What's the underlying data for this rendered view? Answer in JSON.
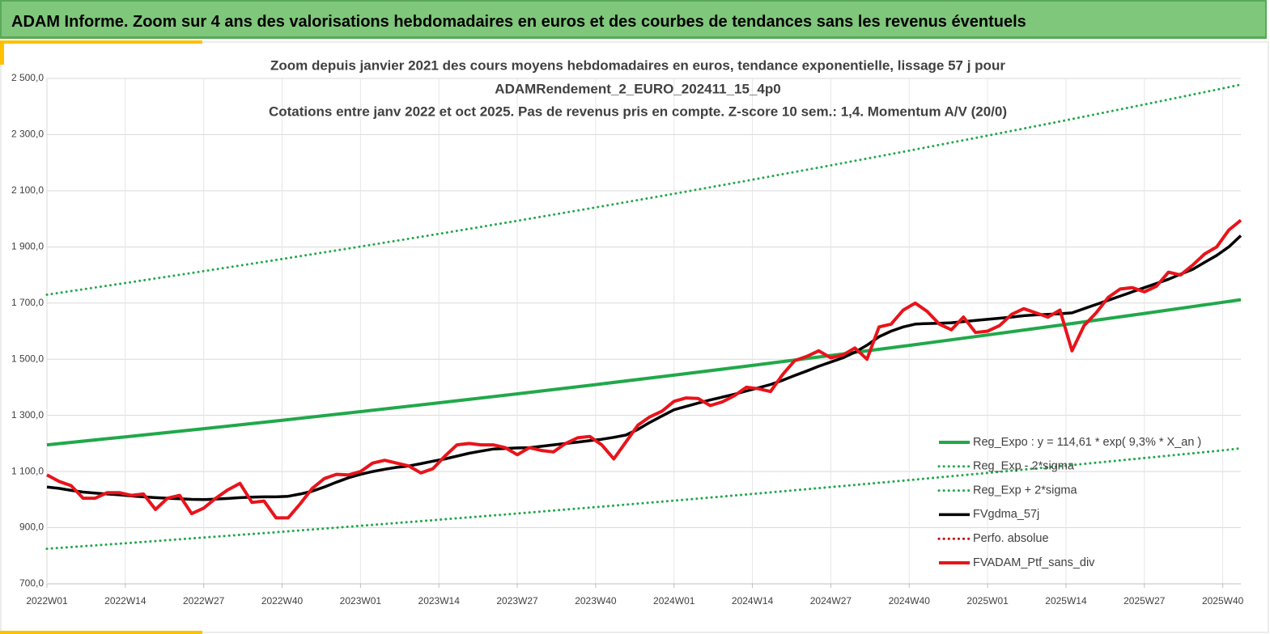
{
  "header": {
    "title": "ADAM Informe. Zoom sur 4 ans des valorisations hebdomadaires en euros et des courbes de tendances sans les revenus éventuels"
  },
  "chart_data": {
    "type": "line",
    "title": [
      "Zoom depuis janvier 2021 des cours moyens hebdomadaires  en euros, tendance exponentielle, lissage 57 j pour",
      "ADAMRendement_2_EURO_202411_15_4p0",
      "Cotations  entre janv 2022 et oct 2025. Pas de revenus pris en compte. Z-score 10 sem.: 1,4. Momentum A/V (20/0)"
    ],
    "xlim": [
      0,
      198
    ],
    "xticks": [
      {
        "value": 0,
        "label": "2022W01"
      },
      {
        "value": 13,
        "label": "2022W14"
      },
      {
        "value": 26,
        "label": "2022W27"
      },
      {
        "value": 39,
        "label": "2022W40"
      },
      {
        "value": 52,
        "label": "2023W01"
      },
      {
        "value": 65,
        "label": "2023W14"
      },
      {
        "value": 78,
        "label": "2023W27"
      },
      {
        "value": 91,
        "label": "2023W40"
      },
      {
        "value": 104,
        "label": "2024W01"
      },
      {
        "value": 117,
        "label": "2024W14"
      },
      {
        "value": 130,
        "label": "2024W27"
      },
      {
        "value": 143,
        "label": "2024W40"
      },
      {
        "value": 156,
        "label": "2025W01"
      },
      {
        "value": 169,
        "label": "2025W14"
      },
      {
        "value": 182,
        "label": "2025W27"
      },
      {
        "value": 195,
        "label": "2025W40"
      }
    ],
    "ylim": [
      700,
      2500
    ],
    "yticks": [
      {
        "value": 700,
        "label": "700,0"
      },
      {
        "value": 900,
        "label": "900,0"
      },
      {
        "value": 1100,
        "label": "1 100,0"
      },
      {
        "value": 1300,
        "label": "1 300,0"
      },
      {
        "value": 1500,
        "label": "1 500,0"
      },
      {
        "value": 1700,
        "label": "1 700,0"
      },
      {
        "value": 1900,
        "label": "1 900,0"
      },
      {
        "value": 2100,
        "label": "2 100,0"
      },
      {
        "value": 2300,
        "label": "2 300,0"
      },
      {
        "value": 2500,
        "label": "2 500,0"
      }
    ],
    "grid": true,
    "legend": "bottom-right",
    "series": [
      {
        "name": "Reg_Expo : y = 114,61 * exp( 9,3% *  X_an )",
        "color": "#21a84a",
        "style": "solid",
        "x": [
          0,
          13,
          26,
          39,
          52,
          65,
          78,
          91,
          104,
          117,
          130,
          143,
          156,
          169,
          182,
          195,
          198
        ],
        "values": [
          1195,
          1223.5,
          1252.7,
          1282.6,
          1313.3,
          1344.7,
          1376.8,
          1409.7,
          1443.4,
          1477.9,
          1513.2,
          1549.4,
          1586.4,
          1624.3,
          1663.1,
          1702.8,
          1712
        ]
      },
      {
        "name": "Reg_Exp - 2*sigma",
        "color": "#21a84a",
        "style": "dotted",
        "x": [
          0,
          13,
          26,
          39,
          52,
          65,
          78,
          91,
          104,
          117,
          130,
          143,
          156,
          169,
          182,
          195,
          198
        ],
        "values": [
          825,
          844.7,
          864.9,
          885.5,
          906.7,
          928.3,
          950.5,
          973.2,
          996.4,
          1020.2,
          1044.6,
          1069.5,
          1095.0,
          1121.2,
          1148.0,
          1175.4,
          1183
        ]
      },
      {
        "name": "Reg_Exp + 2*sigma",
        "color": "#21a84a",
        "style": "dotted",
        "x": [
          0,
          13,
          26,
          39,
          52,
          65,
          78,
          91,
          104,
          117,
          130,
          143,
          156,
          169,
          182,
          195,
          198
        ],
        "values": [
          1730,
          1771.3,
          1813.6,
          1856.9,
          1901.2,
          1946.6,
          1993.1,
          2040.7,
          2089.4,
          2139.3,
          2190.4,
          2242.7,
          2296.3,
          2351.1,
          2407.2,
          2464.7,
          2478
        ]
      },
      {
        "name": "FVgdma_57j",
        "color": "#000000",
        "style": "solid",
        "x": [
          0,
          2,
          4,
          6,
          8,
          10,
          12,
          14,
          16,
          18,
          20,
          22,
          24,
          26,
          28,
          30,
          32,
          34,
          36,
          38,
          40,
          42,
          44,
          46,
          48,
          50,
          52,
          54,
          56,
          58,
          60,
          62,
          64,
          66,
          68,
          70,
          72,
          74,
          76,
          78,
          80,
          82,
          84,
          86,
          88,
          90,
          92,
          94,
          96,
          98,
          100,
          102,
          104,
          106,
          108,
          110,
          112,
          114,
          116,
          118,
          120,
          122,
          124,
          126,
          128,
          130,
          132,
          134,
          136,
          138,
          140,
          142,
          144,
          146,
          148,
          150,
          152,
          154,
          156,
          158,
          160,
          162,
          164,
          166,
          168,
          170,
          172,
          174,
          176,
          178,
          180,
          182,
          184,
          186,
          188,
          190,
          192,
          194,
          196,
          198
        ],
        "values": [
          1045,
          1040,
          1033,
          1027,
          1023,
          1020,
          1017,
          1013,
          1010,
          1007,
          1005,
          1003,
          1001,
          1000,
          1002,
          1004,
          1007,
          1009,
          1010,
          1010,
          1012,
          1020,
          1030,
          1045,
          1062,
          1078,
          1090,
          1100,
          1108,
          1115,
          1120,
          1128,
          1137,
          1145,
          1155,
          1165,
          1173,
          1180,
          1182,
          1184,
          1185,
          1190,
          1195,
          1200,
          1205,
          1210,
          1215,
          1222,
          1230,
          1250,
          1275,
          1298,
          1320,
          1332,
          1344,
          1355,
          1365,
          1375,
          1387,
          1398,
          1410,
          1425,
          1442,
          1458,
          1475,
          1490,
          1505,
          1525,
          1550,
          1580,
          1600,
          1615,
          1625,
          1627,
          1628,
          1630,
          1634,
          1638,
          1642,
          1646,
          1650,
          1655,
          1658,
          1660,
          1662,
          1665,
          1680,
          1695,
          1710,
          1725,
          1740,
          1755,
          1770,
          1785,
          1803,
          1820,
          1845,
          1870,
          1900,
          1940
        ]
      },
      {
        "name": "Perfo. absolue",
        "color": "#c00000",
        "style": "dotted",
        "x": [],
        "values": []
      },
      {
        "name": "FVADAM_Ptf_sans_div",
        "color": "#e8141b",
        "style": "solid",
        "x": [
          0,
          2,
          4,
          6,
          8,
          10,
          12,
          14,
          16,
          18,
          20,
          22,
          24,
          26,
          28,
          30,
          32,
          34,
          36,
          38,
          40,
          42,
          44,
          46,
          48,
          50,
          52,
          54,
          56,
          58,
          60,
          62,
          64,
          66,
          68,
          70,
          72,
          74,
          76,
          78,
          80,
          82,
          84,
          86,
          88,
          90,
          92,
          94,
          96,
          98,
          100,
          102,
          104,
          106,
          108,
          110,
          112,
          114,
          116,
          118,
          120,
          122,
          124,
          126,
          128,
          130,
          132,
          134,
          136,
          138,
          140,
          142,
          144,
          146,
          148,
          150,
          152,
          154,
          156,
          158,
          160,
          162,
          164,
          166,
          168,
          170,
          172,
          174,
          176,
          178,
          180,
          182,
          184,
          186,
          188,
          190,
          192,
          194,
          196,
          198
        ],
        "values": [
          1088,
          1065,
          1050,
          1005,
          1005,
          1025,
          1025,
          1015,
          1020,
          965,
          1005,
          1015,
          950,
          970,
          1005,
          1035,
          1058,
          990,
          995,
          935,
          935,
          985,
          1040,
          1075,
          1090,
          1088,
          1100,
          1130,
          1140,
          1130,
          1120,
          1095,
          1110,
          1155,
          1195,
          1200,
          1195,
          1195,
          1185,
          1160,
          1185,
          1175,
          1170,
          1200,
          1220,
          1225,
          1195,
          1145,
          1205,
          1265,
          1295,
          1315,
          1350,
          1362,
          1360,
          1335,
          1348,
          1370,
          1400,
          1395,
          1385,
          1445,
          1495,
          1510,
          1530,
          1505,
          1515,
          1540,
          1500,
          1615,
          1625,
          1675,
          1700,
          1670,
          1625,
          1605,
          1650,
          1595,
          1600,
          1620,
          1660,
          1680,
          1665,
          1650,
          1675,
          1530,
          1620,
          1665,
          1720,
          1750,
          1755,
          1740,
          1760,
          1810,
          1800,
          1835,
          1875,
          1900,
          1960,
          1995
        ]
      }
    ]
  }
}
